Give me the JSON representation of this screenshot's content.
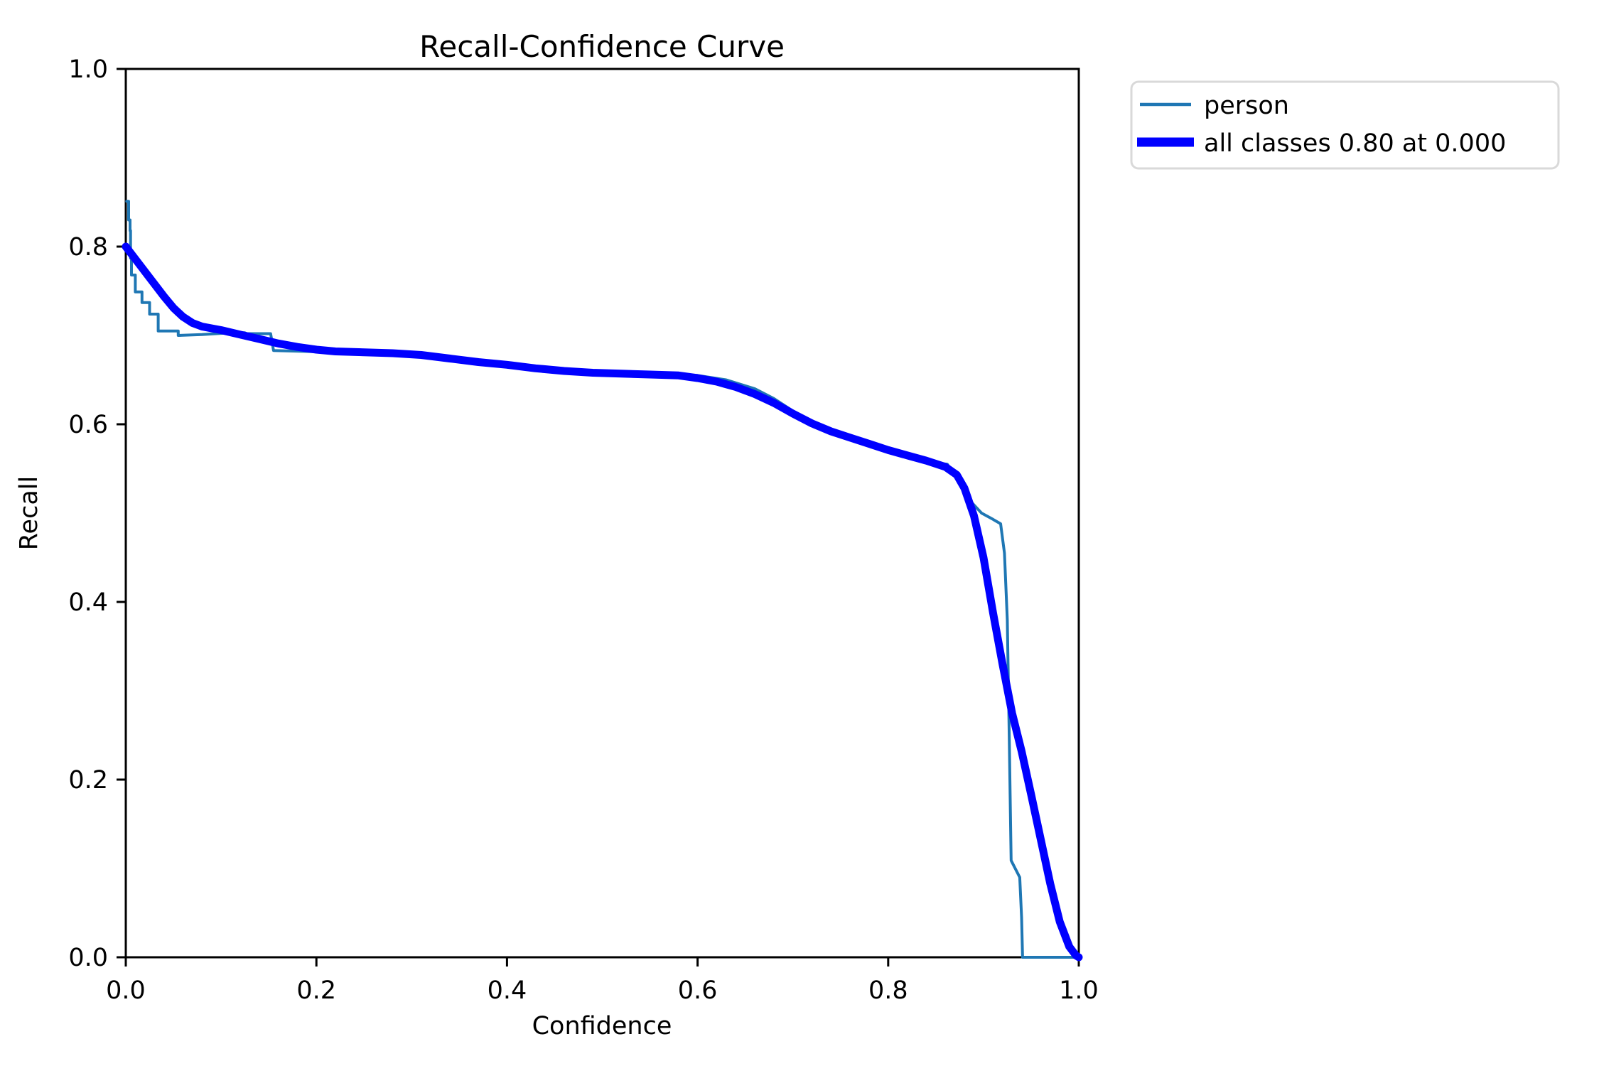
{
  "figure": {
    "title": "Recall-Confidence Curve",
    "axes": {
      "xlabel": "Confidence",
      "ylabel": "Recall",
      "xticks": [
        "0.0",
        "0.2",
        "0.4",
        "0.6",
        "0.8",
        "1.0"
      ],
      "yticks": [
        "0.0",
        "0.2",
        "0.4",
        "0.6",
        "0.8",
        "1.0"
      ]
    },
    "legend": {
      "entries": [
        {
          "label": "person",
          "color": "#1f77b4",
          "thickness": "thin"
        },
        {
          "label": "all classes 0.80 at 0.000",
          "color": "#0000ff",
          "thickness": "thick"
        }
      ]
    },
    "colors": {
      "person_line": "#1f77b4",
      "all_classes_line": "#0000ff",
      "spine": "#000000",
      "tick": "#000000",
      "text": "#000000",
      "legend_border": "#d9d9d9",
      "background": "#ffffff"
    }
  },
  "chart_data": {
    "type": "line",
    "title": "Recall-Confidence Curve",
    "xlabel": "Confidence",
    "ylabel": "Recall",
    "xlim": [
      0.0,
      1.0
    ],
    "ylim": [
      0.0,
      1.0
    ],
    "grid": false,
    "legend_position": "outside-upper-right",
    "series": [
      {
        "name": "person",
        "color": "#1f77b4",
        "thickness": "thin",
        "points": [
          [
            0.001,
            0.851
          ],
          [
            0.003,
            0.851
          ],
          [
            0.003,
            0.83
          ],
          [
            0.0045,
            0.83
          ],
          [
            0.0045,
            0.818
          ],
          [
            0.005,
            0.818
          ],
          [
            0.005,
            0.787
          ],
          [
            0.006,
            0.787
          ],
          [
            0.006,
            0.768
          ],
          [
            0.01,
            0.768
          ],
          [
            0.01,
            0.749
          ],
          [
            0.017,
            0.749
          ],
          [
            0.017,
            0.737
          ],
          [
            0.025,
            0.737
          ],
          [
            0.025,
            0.724
          ],
          [
            0.034,
            0.724
          ],
          [
            0.034,
            0.705
          ],
          [
            0.055,
            0.705
          ],
          [
            0.055,
            0.7
          ],
          [
            0.08,
            0.701
          ],
          [
            0.11,
            0.703
          ],
          [
            0.125,
            0.703
          ],
          [
            0.127,
            0.702
          ],
          [
            0.152,
            0.702
          ],
          [
            0.155,
            0.683
          ],
          [
            0.19,
            0.682
          ],
          [
            0.215,
            0.681
          ],
          [
            0.25,
            0.68
          ],
          [
            0.285,
            0.679
          ],
          [
            0.32,
            0.676
          ],
          [
            0.36,
            0.671
          ],
          [
            0.4,
            0.667
          ],
          [
            0.45,
            0.661
          ],
          [
            0.5,
            0.657
          ],
          [
            0.55,
            0.656
          ],
          [
            0.6,
            0.655
          ],
          [
            0.63,
            0.65
          ],
          [
            0.66,
            0.64
          ],
          [
            0.68,
            0.629
          ],
          [
            0.7,
            0.615
          ],
          [
            0.72,
            0.602
          ],
          [
            0.74,
            0.593
          ],
          [
            0.76,
            0.586
          ],
          [
            0.78,
            0.578
          ],
          [
            0.8,
            0.571
          ],
          [
            0.82,
            0.564
          ],
          [
            0.845,
            0.557
          ],
          [
            0.862,
            0.555
          ],
          [
            0.875,
            0.535
          ],
          [
            0.885,
            0.515
          ],
          [
            0.898,
            0.5
          ],
          [
            0.91,
            0.493
          ],
          [
            0.918,
            0.488
          ],
          [
            0.922,
            0.455
          ],
          [
            0.925,
            0.38
          ],
          [
            0.927,
            0.25
          ],
          [
            0.929,
            0.109
          ],
          [
            0.938,
            0.09
          ],
          [
            0.94,
            0.045
          ],
          [
            0.941,
            0.0
          ],
          [
            1.0,
            0.0
          ]
        ]
      },
      {
        "name": "all classes 0.80 at 0.000",
        "color": "#0000ff",
        "thickness": "thick",
        "points": [
          [
            0.0,
            0.8
          ],
          [
            0.01,
            0.786
          ],
          [
            0.02,
            0.772
          ],
          [
            0.03,
            0.758
          ],
          [
            0.04,
            0.744
          ],
          [
            0.05,
            0.731
          ],
          [
            0.06,
            0.721
          ],
          [
            0.07,
            0.714
          ],
          [
            0.08,
            0.71
          ],
          [
            0.1,
            0.706
          ],
          [
            0.12,
            0.701
          ],
          [
            0.14,
            0.696
          ],
          [
            0.16,
            0.691
          ],
          [
            0.18,
            0.687
          ],
          [
            0.2,
            0.684
          ],
          [
            0.22,
            0.682
          ],
          [
            0.25,
            0.681
          ],
          [
            0.28,
            0.68
          ],
          [
            0.31,
            0.678
          ],
          [
            0.34,
            0.674
          ],
          [
            0.37,
            0.67
          ],
          [
            0.4,
            0.667
          ],
          [
            0.43,
            0.663
          ],
          [
            0.46,
            0.66
          ],
          [
            0.49,
            0.658
          ],
          [
            0.52,
            0.657
          ],
          [
            0.55,
            0.656
          ],
          [
            0.58,
            0.655
          ],
          [
            0.6,
            0.652
          ],
          [
            0.62,
            0.648
          ],
          [
            0.64,
            0.642
          ],
          [
            0.66,
            0.634
          ],
          [
            0.68,
            0.624
          ],
          [
            0.7,
            0.612
          ],
          [
            0.72,
            0.601
          ],
          [
            0.74,
            0.592
          ],
          [
            0.76,
            0.585
          ],
          [
            0.78,
            0.578
          ],
          [
            0.8,
            0.571
          ],
          [
            0.82,
            0.565
          ],
          [
            0.84,
            0.559
          ],
          [
            0.86,
            0.552
          ],
          [
            0.872,
            0.543
          ],
          [
            0.88,
            0.528
          ],
          [
            0.89,
            0.497
          ],
          [
            0.9,
            0.45
          ],
          [
            0.91,
            0.388
          ],
          [
            0.92,
            0.33
          ],
          [
            0.93,
            0.275
          ],
          [
            0.94,
            0.232
          ],
          [
            0.95,
            0.183
          ],
          [
            0.96,
            0.133
          ],
          [
            0.97,
            0.083
          ],
          [
            0.98,
            0.04
          ],
          [
            0.99,
            0.012
          ],
          [
            0.997,
            0.002
          ],
          [
            1.0,
            0.0
          ]
        ]
      }
    ]
  }
}
